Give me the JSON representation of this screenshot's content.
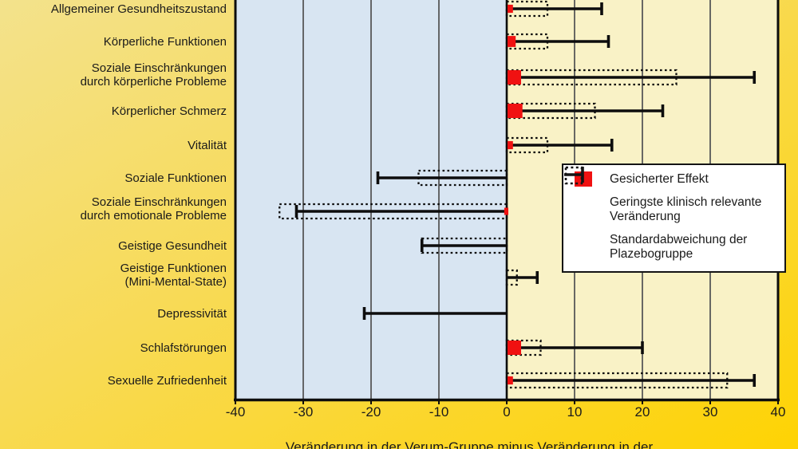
{
  "chart_data": {
    "type": "bar",
    "title": "",
    "xlabel": "Veränderung in der Verum-Gruppe minus Veränderung in der",
    "xlim": [
      -40,
      40
    ],
    "x_ticks": [
      -40,
      -30,
      -20,
      -10,
      0,
      10,
      20,
      30,
      40
    ],
    "grid": true,
    "legend_position": "middle-right",
    "categories": [
      "Allgemeiner Gesundheitszustand",
      "Körperliche Funktionen",
      "Soziale Einschränkungen\ndurch körperliche Probleme",
      "Körperlicher Schmerz",
      "Vitalität",
      "Soziale Funktionen",
      "Soziale Einschränkungen\ndurch emotionale Probleme",
      "Geistige Gesundheit",
      "Geistige Funktionen\n(Mini-Mental-State)",
      "Depressivität",
      "Schlafstörungen",
      "Sexuelle Zufriedenheit"
    ],
    "series": [
      {
        "name": "Gesicherter Effekt",
        "values": [
          0.8,
          1.2,
          2.0,
          2.2,
          0.8,
          null,
          -0.6,
          null,
          null,
          null,
          2.0,
          0.8
        ]
      },
      {
        "name": "Geringste klinisch relevante Veränderung",
        "values": [
          6,
          6,
          25,
          13,
          6,
          -13,
          -33.5,
          -12.5,
          1.5,
          null,
          5,
          32.5
        ]
      },
      {
        "name": "Standardabweichung der Plazebogruppe",
        "values": [
          14,
          15,
          36.5,
          23,
          15.5,
          -19,
          -31,
          -12.5,
          4.5,
          -21,
          20,
          36.5
        ]
      }
    ]
  },
  "legend": {
    "items": [
      {
        "label": "Gesicherter Effekt",
        "marker": "red-square"
      },
      {
        "label": "Geringste klinisch relevante Veränderung",
        "marker": "dashed-box"
      },
      {
        "label": "Standardabweichung der Plazebogruppe",
        "marker": "error-bar"
      }
    ]
  },
  "colors": {
    "effect_red": "#f01111",
    "negative_region_bg": "#d8e5f2",
    "positive_region_bg": "#f9f2c6",
    "grid_line": "#585858",
    "axis_line": "#0d0d0d",
    "text": "#1a1a1a",
    "legend_bg": "#ffffff",
    "page_gold_light": "#f3e28c",
    "page_gold_dark": "#fed303"
  }
}
